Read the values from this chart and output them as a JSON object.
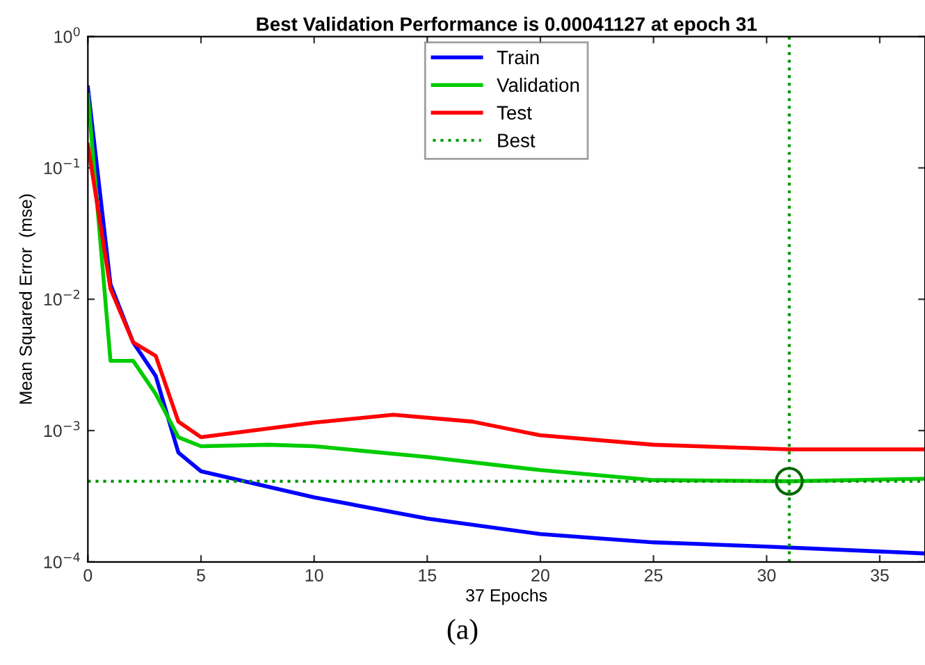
{
  "chart_data": {
    "type": "line",
    "title": "Best Validation Performance is 0.00041127 at epoch 31",
    "xlabel": "37 Epochs",
    "ylabel": "Mean Squared Error  (mse)",
    "log": "y",
    "xlim": [
      0,
      37
    ],
    "ylim": [
      0.0001,
      1
    ],
    "xticks": [
      0,
      5,
      10,
      15,
      20,
      25,
      30,
      35
    ],
    "yticks": [
      {
        "value": 0.0001,
        "label": "10$^{−4}$"
      },
      {
        "value": 0.001,
        "label": "10$^{−3}$"
      },
      {
        "value": 0.01,
        "label": "10$^{−2}$"
      },
      {
        "value": 0.1,
        "label": "10$^{−1}$"
      },
      {
        "value": 1,
        "label": "10$^{0}$"
      }
    ],
    "grid": false,
    "legend": "top",
    "line_style": "solid",
    "marker": "none",
    "series": [
      {
        "name": "Train",
        "color": "#0000ff",
        "x": [
          0,
          1,
          2,
          3,
          4,
          5,
          10,
          15,
          20,
          25,
          30,
          37
        ],
        "values": [
          0.41,
          0.013,
          0.0047,
          0.0026,
          0.00068,
          0.00049,
          0.00031,
          0.000214,
          0.000163,
          0.000141,
          0.000131,
          0.000116
        ]
      },
      {
        "name": "Validation",
        "color": "#00cc00",
        "x": [
          0,
          1,
          2,
          3,
          4,
          5,
          8,
          10,
          15,
          20,
          25,
          31,
          37
        ],
        "values": [
          0.36,
          0.0034,
          0.0034,
          0.0019,
          0.00089,
          0.00076,
          0.00078,
          0.00076,
          0.00063,
          0.0005,
          0.00042,
          0.00041127,
          0.00043
        ]
      },
      {
        "name": "Test",
        "color": "#ff0000",
        "x": [
          0,
          1,
          2,
          3,
          4,
          5,
          10,
          13.5,
          17,
          20,
          25,
          31,
          37
        ],
        "values": [
          0.15,
          0.012,
          0.0047,
          0.0037,
          0.00117,
          0.00089,
          0.00115,
          0.00132,
          0.00117,
          0.00092,
          0.00078,
          0.00072,
          0.00072
        ]
      },
      {
        "type": "scatter",
        "color": "#006600",
        "x": [
          31
        ],
        "values": [
          0.00041127
        ],
        "marker": "circle"
      }
    ],
    "ref_lines": [
      {
        "axis": "y",
        "value": 0.00041127,
        "label": "Best",
        "color": "#009900",
        "line_style": "dotted"
      },
      {
        "axis": "x",
        "value": 31,
        "color": "#009900",
        "line_style": "dotted"
      }
    ],
    "annotations": [
      "(a)"
    ]
  }
}
